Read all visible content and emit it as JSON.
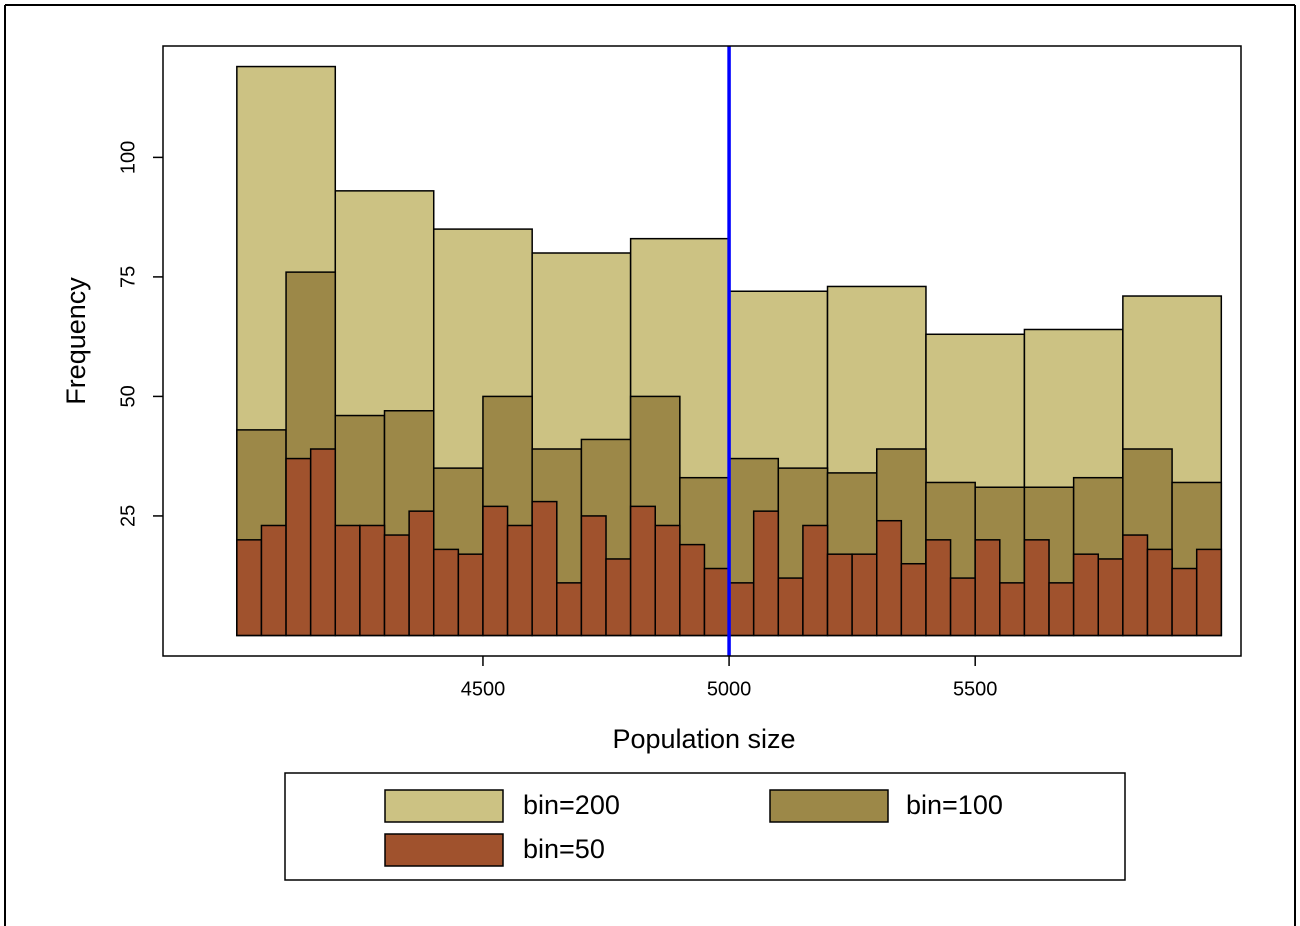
{
  "chart_data": {
    "type": "histogram",
    "xlabel": "Population size",
    "ylabel": "Frequency",
    "xlim": [
      3850,
      6040
    ],
    "ylim": [
      -4.3,
      123.3
    ],
    "xticks": [
      4500,
      5000,
      5500
    ],
    "yticks": [
      25,
      50,
      75,
      100
    ],
    "grid": false,
    "legend": "bottom",
    "vline": {
      "x": 5000,
      "color": "#0000ff"
    },
    "series": [
      {
        "name": "bin=200",
        "color": "#ccc283",
        "bins": [
          4000,
          4200,
          4400,
          4600,
          4800,
          5000,
          5200,
          5400,
          5600,
          5800,
          6000
        ],
        "values": [
          119,
          93,
          85,
          80,
          83,
          72,
          73,
          63,
          64,
          71
        ]
      },
      {
        "name": "bin=100",
        "color": "#9c8848",
        "bins": [
          4000,
          4100,
          4200,
          4300,
          4400,
          4500,
          4600,
          4700,
          4800,
          4900,
          5000,
          5100,
          5200,
          5300,
          5400,
          5500,
          5600,
          5700,
          5800,
          5900,
          6000
        ],
        "values": [
          43,
          76,
          46,
          47,
          35,
          50,
          39,
          41,
          50,
          33,
          37,
          35,
          34,
          39,
          32,
          31,
          31,
          33,
          39,
          32
        ]
      },
      {
        "name": "bin=50",
        "color": "#a0522d",
        "bins": [
          4000,
          4050,
          4100,
          4150,
          4200,
          4250,
          4300,
          4350,
          4400,
          4450,
          4500,
          4550,
          4600,
          4650,
          4700,
          4750,
          4800,
          4850,
          4900,
          4950,
          5000,
          5050,
          5100,
          5150,
          5200,
          5250,
          5300,
          5350,
          5400,
          5450,
          5500,
          5550,
          5600,
          5650,
          5700,
          5750,
          5800,
          5850,
          5900,
          5950,
          6000
        ],
        "values": [
          20,
          23,
          37,
          39,
          23,
          23,
          21,
          26,
          18,
          17,
          27,
          23,
          28,
          11,
          25,
          16,
          27,
          23,
          19,
          14,
          11,
          26,
          12,
          23,
          17,
          17,
          24,
          15,
          20,
          12,
          20,
          11,
          20,
          11,
          17,
          16,
          21,
          18,
          14,
          18
        ]
      }
    ]
  }
}
